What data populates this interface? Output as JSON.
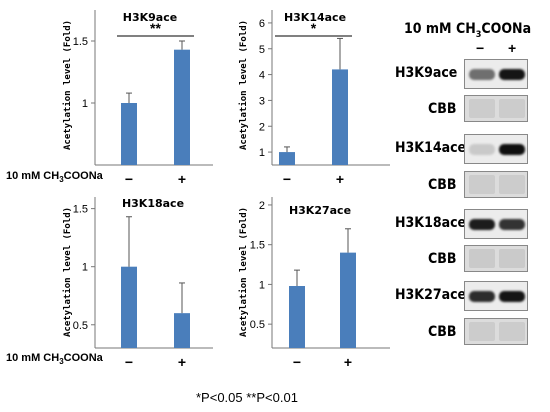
{
  "figure": {
    "condition_label": "10 mM CH",
    "condition_sub": "3",
    "condition_tail": "COONa",
    "minus_symbol": "−",
    "plus_symbol": "+",
    "footnote": "*P<0.05   **P<0.01",
    "bar_color": "#4a7ebb"
  },
  "chart_data": [
    {
      "type": "bar",
      "title": "H3K9ace",
      "ylabel": "Acetylation level (Fold)",
      "categories": [
        "−",
        "+"
      ],
      "values": [
        1.0,
        1.43
      ],
      "errors": [
        0.08,
        0.07
      ],
      "ylim": [
        0.5,
        1.75
      ],
      "yticks": [
        1,
        1.5
      ],
      "significance": "**"
    },
    {
      "type": "bar",
      "title": "H3K14ace",
      "ylabel": "Acetylation level (Fold)",
      "categories": [
        "−",
        "+"
      ],
      "values": [
        1.0,
        4.2
      ],
      "errors": [
        0.2,
        1.2
      ],
      "ylim": [
        0.5,
        6.5
      ],
      "yticks": [
        1,
        2,
        3,
        4,
        5,
        6
      ],
      "significance": "*"
    },
    {
      "type": "bar",
      "title": "H3K18ace",
      "ylabel": "Acetylation level (Fold)",
      "categories": [
        "−",
        "+"
      ],
      "values": [
        1.0,
        0.6
      ],
      "errors": [
        0.43,
        0.26
      ],
      "ylim": [
        0.3,
        1.6
      ],
      "yticks": [
        0.5,
        1,
        1.5
      ],
      "significance": ""
    },
    {
      "type": "bar",
      "title": "H3K27ace",
      "ylabel": "Acetylation level (Fold)",
      "categories": [
        "−",
        "+"
      ],
      "values": [
        0.98,
        1.4
      ],
      "errors": [
        0.2,
        0.3
      ],
      "ylim": [
        0.2,
        2.1
      ],
      "yticks": [
        0.5,
        1,
        1.5,
        2
      ],
      "significance": ""
    }
  ],
  "blot": {
    "header": "10 mM CH",
    "header_sub": "3",
    "header_tail": "COONa",
    "lanes": [
      "−",
      "+"
    ],
    "rows": [
      {
        "label": "H3K9ace",
        "kind": "band",
        "left": 0.55,
        "right": 0.95
      },
      {
        "label": "CBB",
        "kind": "stain",
        "left": 0.12,
        "right": 0.12
      },
      {
        "label": "H3K14ace",
        "kind": "band",
        "left": 0.15,
        "right": 0.98
      },
      {
        "label": "CBB",
        "kind": "stain",
        "left": 0.12,
        "right": 0.12
      },
      {
        "label": "H3K18ace",
        "kind": "band",
        "left": 0.92,
        "right": 0.82
      },
      {
        "label": "CBB",
        "kind": "stain",
        "left": 0.14,
        "right": 0.14
      },
      {
        "label": "H3K27ace",
        "kind": "band",
        "left": 0.85,
        "right": 0.95
      },
      {
        "label": "CBB",
        "kind": "stain",
        "left": 0.12,
        "right": 0.12
      }
    ]
  }
}
